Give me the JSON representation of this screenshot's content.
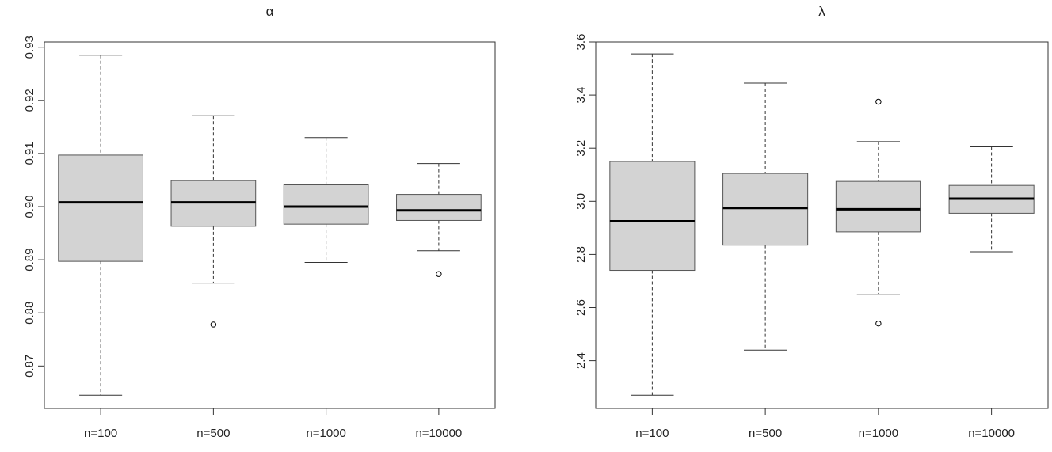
{
  "chart_data": [
    {
      "type": "boxplot",
      "title": "α",
      "xlabel": "",
      "ylabel": "",
      "categories": [
        "n=100",
        "n=500",
        "n=1000",
        "n=10000"
      ],
      "ylim": [
        0.862,
        0.931
      ],
      "yticks": [
        "0.87",
        "0.88",
        "0.89",
        "0.90",
        "0.91",
        "0.92",
        "0.93"
      ],
      "grid": false,
      "boxes": [
        {
          "category": "n=100",
          "whisker_low": 0.8645,
          "q1": 0.8897,
          "median": 0.9008,
          "q3": 0.9097,
          "whisker_high": 0.9285,
          "outliers": []
        },
        {
          "category": "n=500",
          "whisker_low": 0.8856,
          "q1": 0.8963,
          "median": 0.9008,
          "q3": 0.9049,
          "whisker_high": 0.9171,
          "outliers": [
            0.8778
          ]
        },
        {
          "category": "n=1000",
          "whisker_low": 0.8895,
          "q1": 0.8967,
          "median": 0.9,
          "q3": 0.9041,
          "whisker_high": 0.913,
          "outliers": []
        },
        {
          "category": "n=10000",
          "whisker_low": 0.8917,
          "q1": 0.8974,
          "median": 0.8993,
          "q3": 0.9023,
          "whisker_high": 0.9081,
          "outliers": [
            0.8873
          ]
        }
      ]
    },
    {
      "type": "boxplot",
      "title": "λ",
      "xlabel": "",
      "ylabel": "",
      "categories": [
        "n=100",
        "n=500",
        "n=1000",
        "n=10000"
      ],
      "ylim": [
        2.22,
        3.6
      ],
      "yticks": [
        "2.4",
        "2.6",
        "2.8",
        "3.0",
        "3.2",
        "3.4",
        "3.6"
      ],
      "grid": false,
      "boxes": [
        {
          "category": "n=100",
          "whisker_low": 2.27,
          "q1": 2.74,
          "median": 2.925,
          "q3": 3.15,
          "whisker_high": 3.555,
          "outliers": []
        },
        {
          "category": "n=500",
          "whisker_low": 2.44,
          "q1": 2.835,
          "median": 2.975,
          "q3": 3.105,
          "whisker_high": 3.445,
          "outliers": []
        },
        {
          "category": "n=1000",
          "whisker_low": 2.65,
          "q1": 2.885,
          "median": 2.97,
          "q3": 3.075,
          "whisker_high": 3.225,
          "outliers": [
            2.54,
            3.375
          ]
        },
        {
          "category": "n=10000",
          "whisker_low": 2.81,
          "q1": 2.955,
          "median": 3.01,
          "q3": 3.06,
          "whisker_high": 3.205,
          "outliers": []
        }
      ]
    }
  ],
  "colors": {
    "box_fill": "#d3d3d3",
    "box_stroke": "#555555",
    "median": "#000000",
    "whisker": "#333333",
    "axis": "#333333"
  }
}
